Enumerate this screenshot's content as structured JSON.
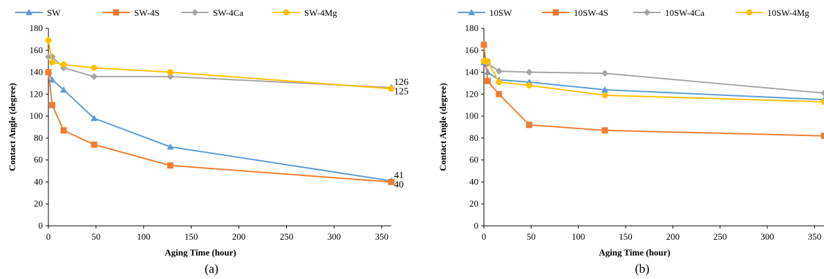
{
  "chart_data": [
    {
      "id": "a",
      "type": "line",
      "caption": "(a)",
      "xlabel": "Aging Time (hour)",
      "ylabel": "Contact Angle (degree)",
      "xlim": [
        0,
        360
      ],
      "ylim": [
        0,
        180
      ],
      "xticks": [
        0,
        50,
        100,
        150,
        200,
        250,
        300,
        350
      ],
      "yticks": [
        0,
        20,
        40,
        60,
        80,
        100,
        120,
        140,
        160,
        180
      ],
      "grid": false,
      "legend": "top",
      "series": [
        {
          "name": "SW",
          "color": "#5B9BD5",
          "marker": "triangle",
          "x": [
            0,
            4,
            16,
            48,
            128,
            360
          ],
          "y": [
            140,
            133,
            124,
            98,
            72,
            41
          ]
        },
        {
          "name": "SW-4S",
          "color": "#ED7D31",
          "marker": "square",
          "x": [
            0,
            4,
            16,
            48,
            128,
            360
          ],
          "y": [
            140,
            110,
            87,
            74,
            55,
            40
          ]
        },
        {
          "name": "SW-4Ca",
          "color": "#A5A5A5",
          "marker": "diamond",
          "x": [
            0,
            4,
            16,
            48,
            128,
            360
          ],
          "y": [
            154,
            154,
            144,
            136,
            136,
            126
          ]
        },
        {
          "name": "SW-4Mg",
          "color": "#FFC000",
          "marker": "circle",
          "x": [
            0,
            4,
            16,
            48,
            128,
            360
          ],
          "y": [
            169,
            149,
            147,
            144,
            140,
            125
          ]
        }
      ],
      "annotations": [
        {
          "text": "126",
          "x": 360,
          "y": 126,
          "dy": -4
        },
        {
          "text": "125",
          "x": 360,
          "y": 125,
          "dy": 8
        },
        {
          "text": "41",
          "x": 360,
          "y": 41,
          "dy": -4
        },
        {
          "text": "40",
          "x": 360,
          "y": 40,
          "dy": 8
        }
      ]
    },
    {
      "id": "b",
      "type": "line",
      "caption": "(b)",
      "xlabel": "Aging Time (hour)",
      "ylabel": "Contact Angle (degree)",
      "xlim": [
        0,
        360
      ],
      "ylim": [
        0,
        180
      ],
      "xticks": [
        0,
        50,
        100,
        150,
        200,
        250,
        300,
        350
      ],
      "yticks": [
        0,
        20,
        40,
        60,
        80,
        100,
        120,
        140,
        160,
        180
      ],
      "grid": false,
      "legend": "top",
      "series": [
        {
          "name": "10SW",
          "color": "#5B9BD5",
          "marker": "triangle",
          "x": [
            0,
            4,
            16,
            48,
            128,
            360
          ],
          "y": [
            149,
            140,
            133,
            131,
            124,
            115
          ]
        },
        {
          "name": "10SW-4S",
          "color": "#ED7D31",
          "marker": "square",
          "x": [
            0,
            4,
            16,
            48,
            128,
            360
          ],
          "y": [
            165,
            132,
            120,
            92,
            87,
            82
          ]
        },
        {
          "name": "10SW-4Ca",
          "color": "#A5A5A5",
          "marker": "diamond",
          "x": [
            0,
            4,
            16,
            48,
            128,
            360
          ],
          "y": [
            150,
            148,
            141,
            140,
            139,
            121
          ]
        },
        {
          "name": "10SW-4Mg",
          "color": "#FFC000",
          "marker": "circle",
          "x": [
            0,
            4,
            16,
            48,
            128,
            360
          ],
          "y": [
            150,
            150,
            131,
            128,
            119,
            113
          ]
        }
      ],
      "annotations": []
    }
  ]
}
